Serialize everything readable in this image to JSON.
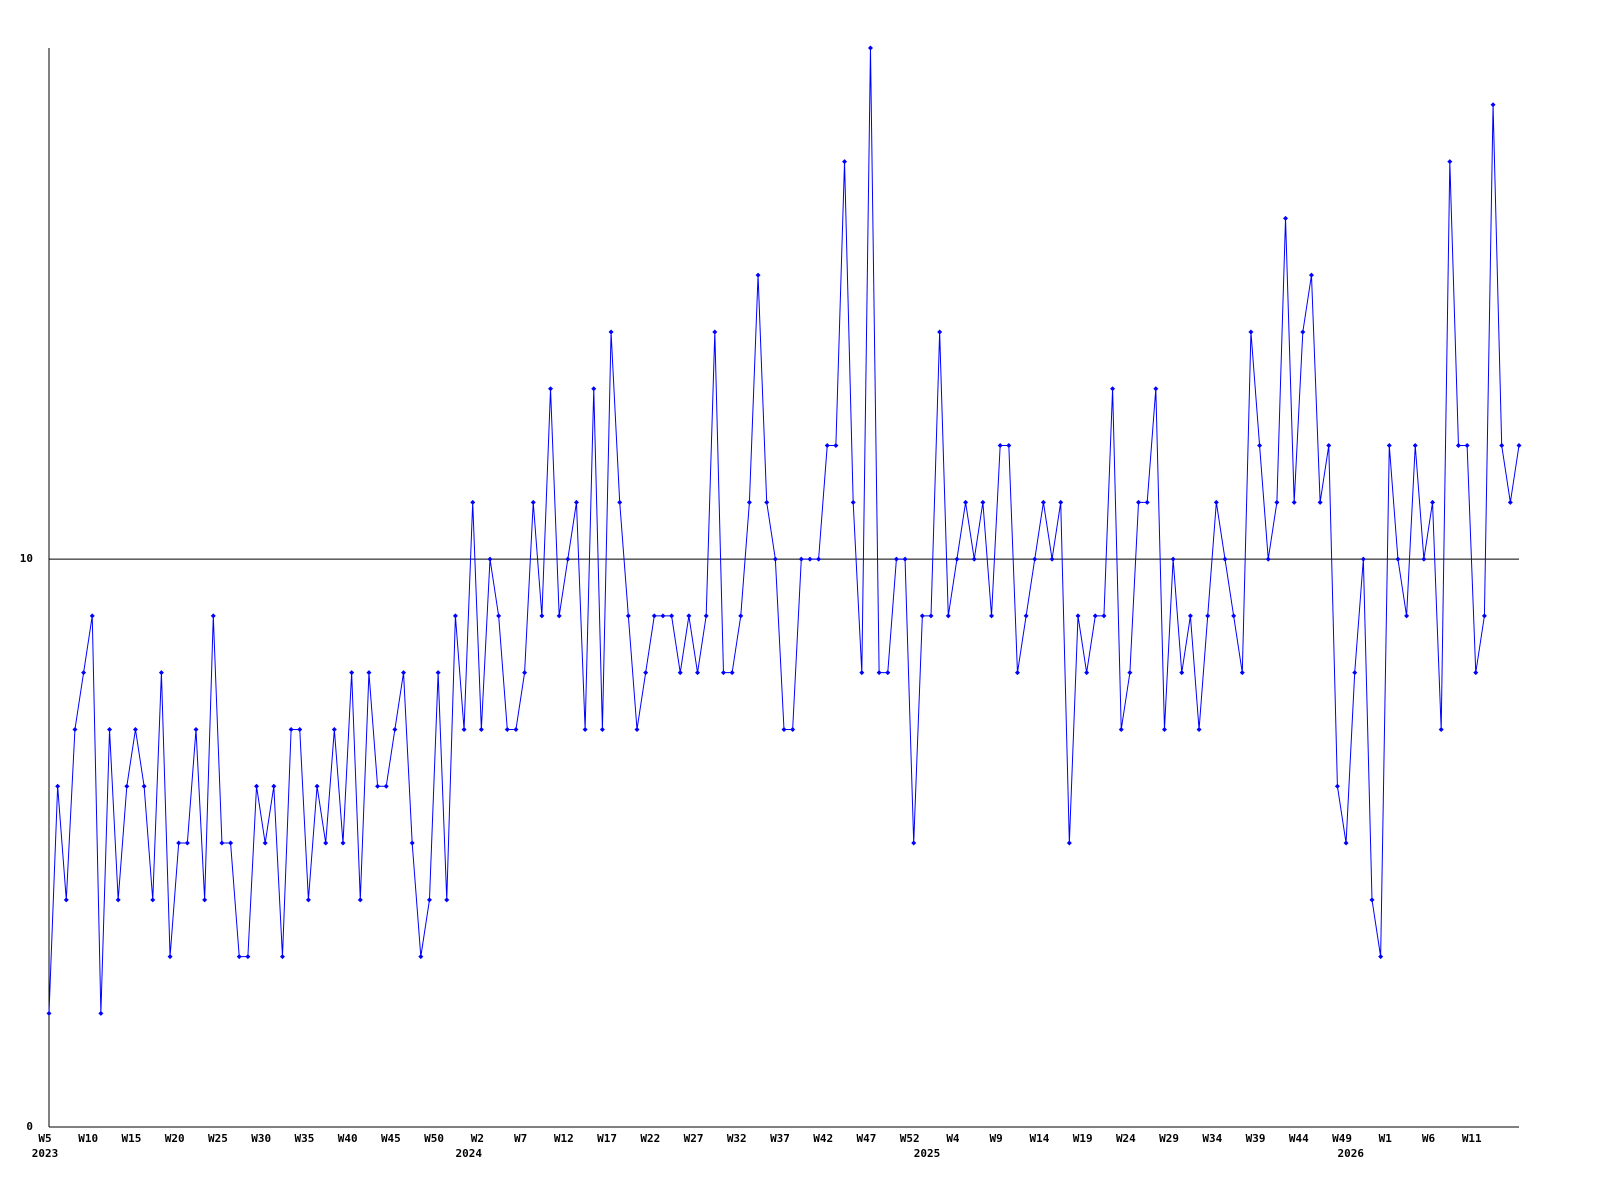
{
  "chart_data": {
    "type": "line",
    "categories": [
      "W5",
      null,
      null,
      null,
      null,
      "W10",
      null,
      null,
      null,
      null,
      "W15",
      null,
      null,
      null,
      null,
      "W20",
      null,
      null,
      null,
      null,
      "W25",
      null,
      null,
      null,
      null,
      "W30",
      null,
      null,
      null,
      null,
      "W35",
      null,
      null,
      null,
      null,
      "W40",
      null,
      null,
      null,
      null,
      "W45",
      null,
      null,
      null,
      null,
      "W50",
      null,
      null,
      null,
      null,
      "W2",
      null,
      null,
      null,
      null,
      "W7",
      null,
      null,
      null,
      null,
      "W12",
      null,
      null,
      null,
      null,
      "W17",
      null,
      null,
      null,
      null,
      "W22",
      null,
      null,
      null,
      null,
      "W27",
      null,
      null,
      null,
      null,
      "W32",
      null,
      null,
      null,
      null,
      "W37",
      null,
      null,
      null,
      null,
      "W42",
      null,
      null,
      null,
      null,
      "W47",
      null,
      null,
      null,
      null,
      "W52",
      null,
      null,
      null,
      null,
      "W4",
      null,
      null,
      null,
      null,
      "W9",
      null,
      null,
      null,
      null,
      "W14",
      null,
      null,
      null,
      null,
      "W19",
      null,
      null,
      null,
      null,
      "W24",
      null,
      null,
      null,
      null,
      "W29",
      null,
      null,
      null,
      null,
      "W34",
      null,
      null,
      null,
      null,
      "W39",
      null,
      null,
      null,
      null,
      "W44",
      null,
      null,
      null,
      null,
      "W49",
      null,
      null,
      null,
      null,
      "W1",
      null,
      null,
      null,
      null,
      "W6",
      null,
      null,
      null,
      null,
      "W11",
      null,
      null,
      null,
      null,
      null
    ],
    "years": [
      "2023",
      null,
      null,
      null,
      null,
      null,
      null,
      null,
      null,
      null,
      null,
      null,
      null,
      null,
      null,
      null,
      null,
      null,
      null,
      null,
      null,
      null,
      null,
      null,
      null,
      null,
      null,
      null,
      null,
      null,
      null,
      null,
      null,
      null,
      null,
      null,
      null,
      null,
      null,
      null,
      null,
      null,
      null,
      null,
      null,
      null,
      null,
      null,
      null,
      "2024",
      null,
      null,
      null,
      null,
      null,
      null,
      null,
      null,
      null,
      null,
      null,
      null,
      null,
      null,
      null,
      null,
      null,
      null,
      null,
      null,
      null,
      null,
      null,
      null,
      null,
      null,
      null,
      null,
      null,
      null,
      null,
      null,
      null,
      null,
      null,
      null,
      null,
      null,
      null,
      null,
      null,
      null,
      null,
      null,
      null,
      null,
      null,
      null,
      null,
      null,
      null,
      null,
      "2025",
      null,
      null,
      null,
      null,
      null,
      null,
      null,
      null,
      null,
      null,
      null,
      null,
      null,
      null,
      null,
      null,
      null,
      null,
      null,
      null,
      null,
      null,
      null,
      null,
      null,
      null,
      null,
      null,
      null,
      null,
      null,
      null,
      null,
      null,
      null,
      null,
      null,
      null,
      null,
      null,
      null,
      null,
      null,
      null,
      null,
      null,
      null,
      null,
      "2026",
      null,
      null,
      null,
      null,
      null,
      null,
      null,
      null,
      null,
      null,
      null,
      null,
      null,
      null,
      null
    ],
    "series": [
      {
        "color": "#0000ff",
        "values": [
          2,
          6,
          4,
          7,
          8,
          9,
          2,
          7,
          4,
          6,
          7,
          6,
          4,
          8,
          3,
          5,
          5,
          7,
          4,
          9,
          5,
          5,
          3,
          3,
          6,
          5,
          6,
          3,
          7,
          7,
          4,
          6,
          5,
          7,
          5,
          8,
          4,
          8,
          6,
          6,
          7,
          8,
          5,
          3,
          4,
          8,
          4,
          9,
          7,
          11,
          7,
          10,
          9,
          7,
          7,
          8,
          11,
          9,
          13,
          9,
          10,
          11,
          7,
          13,
          7,
          14,
          11,
          9,
          7,
          8,
          9,
          9,
          9,
          8,
          9,
          8,
          9,
          14,
          8,
          8,
          9,
          11,
          15,
          11,
          10,
          7,
          7,
          10,
          10,
          10,
          12,
          12,
          17,
          11,
          8,
          19,
          8,
          8,
          10,
          10,
          5,
          9,
          9,
          14,
          9,
          10,
          11,
          10,
          11,
          9,
          12,
          12,
          8,
          9,
          10,
          11,
          10,
          11,
          5,
          9,
          8,
          9,
          9,
          13,
          7,
          8,
          11,
          11,
          13,
          7,
          10,
          8,
          9,
          7,
          9,
          11,
          10,
          9,
          8,
          14,
          12,
          10,
          11,
          16,
          11,
          14,
          15,
          11,
          12,
          6,
          5,
          8,
          10,
          4,
          3,
          12,
          10,
          9,
          12,
          10,
          11,
          7,
          17,
          12,
          12,
          8,
          9,
          18,
          12,
          11,
          12
        ]
      }
    ],
    "ylim": [
      0,
      19
    ],
    "yticks": [
      0,
      10
    ],
    "grid": true
  }
}
